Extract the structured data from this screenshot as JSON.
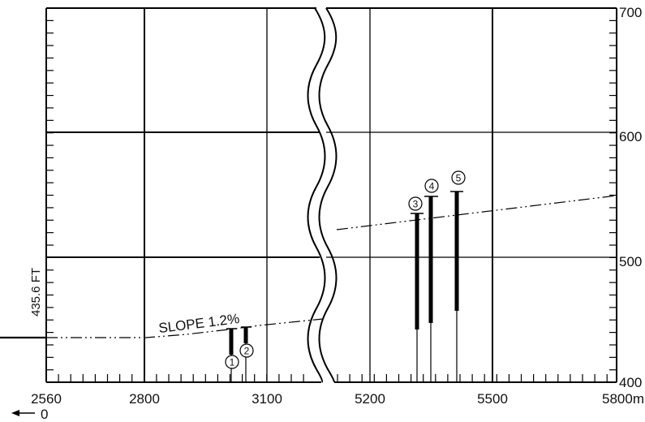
{
  "diagram": {
    "type": "elevation-profile",
    "x_ticks_left": [
      "2560",
      "2800",
      "3100"
    ],
    "x_ticks_right": [
      "5200",
      "5500",
      "5800m"
    ],
    "x_origin_label": "0",
    "y_ticks": [
      "700",
      "600",
      "500",
      "400"
    ],
    "elevation_label": "435.6 FT",
    "slope_label": "SLOPE 1.2%",
    "markers": [
      {
        "label": "1",
        "x": 3015
      },
      {
        "label": "2",
        "x": 3050
      },
      {
        "label": "3",
        "x": 5320
      },
      {
        "label": "4",
        "x": 5355
      },
      {
        "label": "5",
        "x": 5420
      }
    ]
  }
}
